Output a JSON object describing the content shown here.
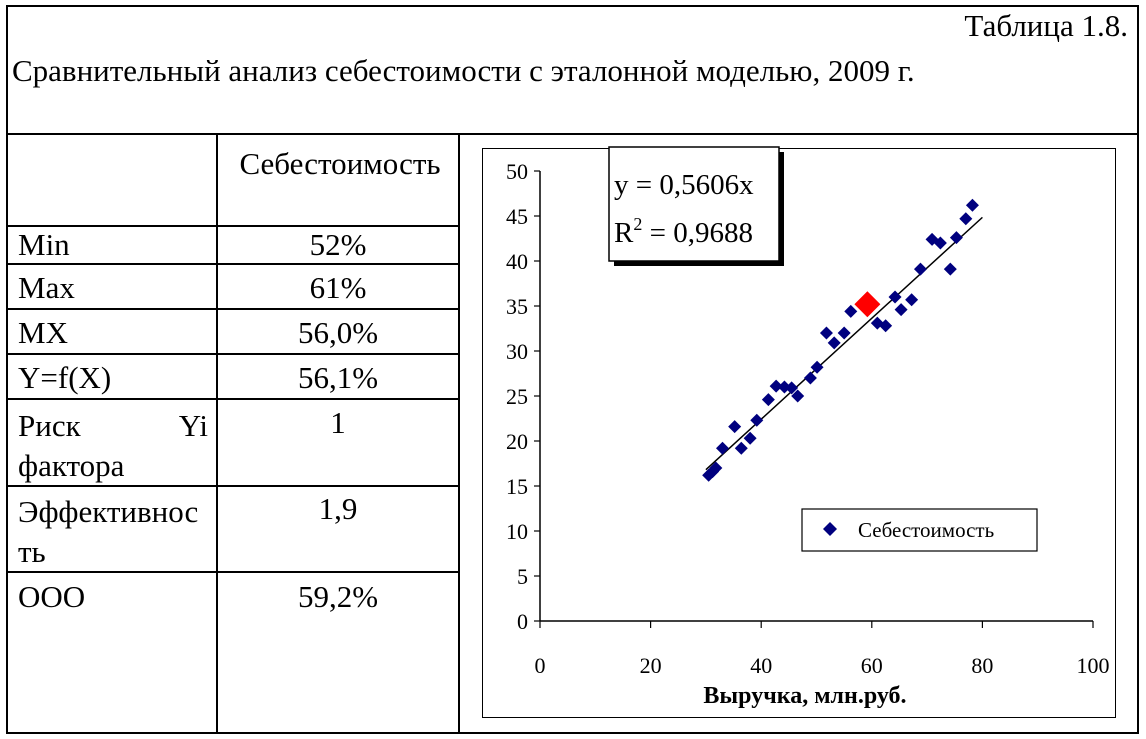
{
  "table_label": "Таблица 1.8.",
  "title": "Сравнительный анализ себестоимости с эталонной моделью, 2009 г.",
  "table": {
    "header": "Себестоимость",
    "rows": [
      {
        "label": "Min",
        "value": "52%"
      },
      {
        "label": "Max",
        "value": "61%"
      },
      {
        "label": "MX",
        "value": "56,0%"
      },
      {
        "label": "Y=f(X)",
        "value": "56,1%"
      },
      {
        "label": "Риск Yi фактора",
        "value": "1"
      },
      {
        "label": "Эффективность",
        "value": "1,9"
      },
      {
        "label": "ООО",
        "value": "59,2%"
      }
    ]
  },
  "chart_data": {
    "type": "scatter",
    "xlabel": "Выручка, млн.руб.",
    "ylabel": "",
    "xlim": [
      0,
      100
    ],
    "ylim": [
      0,
      50
    ],
    "x_ticks": [
      "0",
      "20",
      "40",
      "60",
      "80",
      "100"
    ],
    "y_ticks": [
      "0",
      "5",
      "10",
      "15",
      "20",
      "25",
      "30",
      "35",
      "40",
      "45",
      "50"
    ],
    "legend": {
      "placement": "lower-right",
      "entries": [
        "Себестоимость"
      ]
    },
    "equation": "y = 0,5606x",
    "r2_label": "R",
    "r2_value": " = 0,9688",
    "trendline_slope": 0.5606,
    "trendline_range": [
      30,
      80
    ],
    "series": [
      {
        "name": "Себестоимость",
        "color": "#00007f",
        "marker": "diamond",
        "points": [
          [
            30.5,
            16.2
          ],
          [
            31.2,
            16.6
          ],
          [
            31.8,
            17.0
          ],
          [
            33.0,
            19.2
          ],
          [
            35.2,
            21.6
          ],
          [
            36.4,
            19.2
          ],
          [
            38.0,
            20.3
          ],
          [
            39.2,
            22.3
          ],
          [
            41.3,
            24.6
          ],
          [
            42.7,
            26.1
          ],
          [
            44.2,
            26.0
          ],
          [
            45.5,
            25.9
          ],
          [
            46.6,
            25.0
          ],
          [
            48.9,
            27.0
          ],
          [
            50.1,
            28.2
          ],
          [
            51.8,
            32.0
          ],
          [
            53.2,
            30.9
          ],
          [
            55.0,
            32.0
          ],
          [
            56.2,
            34.4
          ],
          [
            61.0,
            33.1
          ],
          [
            62.5,
            32.8
          ],
          [
            64.2,
            36.0
          ],
          [
            65.3,
            34.6
          ],
          [
            67.2,
            35.7
          ],
          [
            68.8,
            39.1
          ],
          [
            70.9,
            42.4
          ],
          [
            72.4,
            42.0
          ],
          [
            74.2,
            39.1
          ],
          [
            75.3,
            42.6
          ],
          [
            77.0,
            44.7
          ],
          [
            78.2,
            46.2
          ]
        ]
      },
      {
        "name": "ООО",
        "color": "#ff0000",
        "marker": "diamond",
        "points": [
          [
            59.2,
            35.2
          ]
        ]
      }
    ]
  }
}
